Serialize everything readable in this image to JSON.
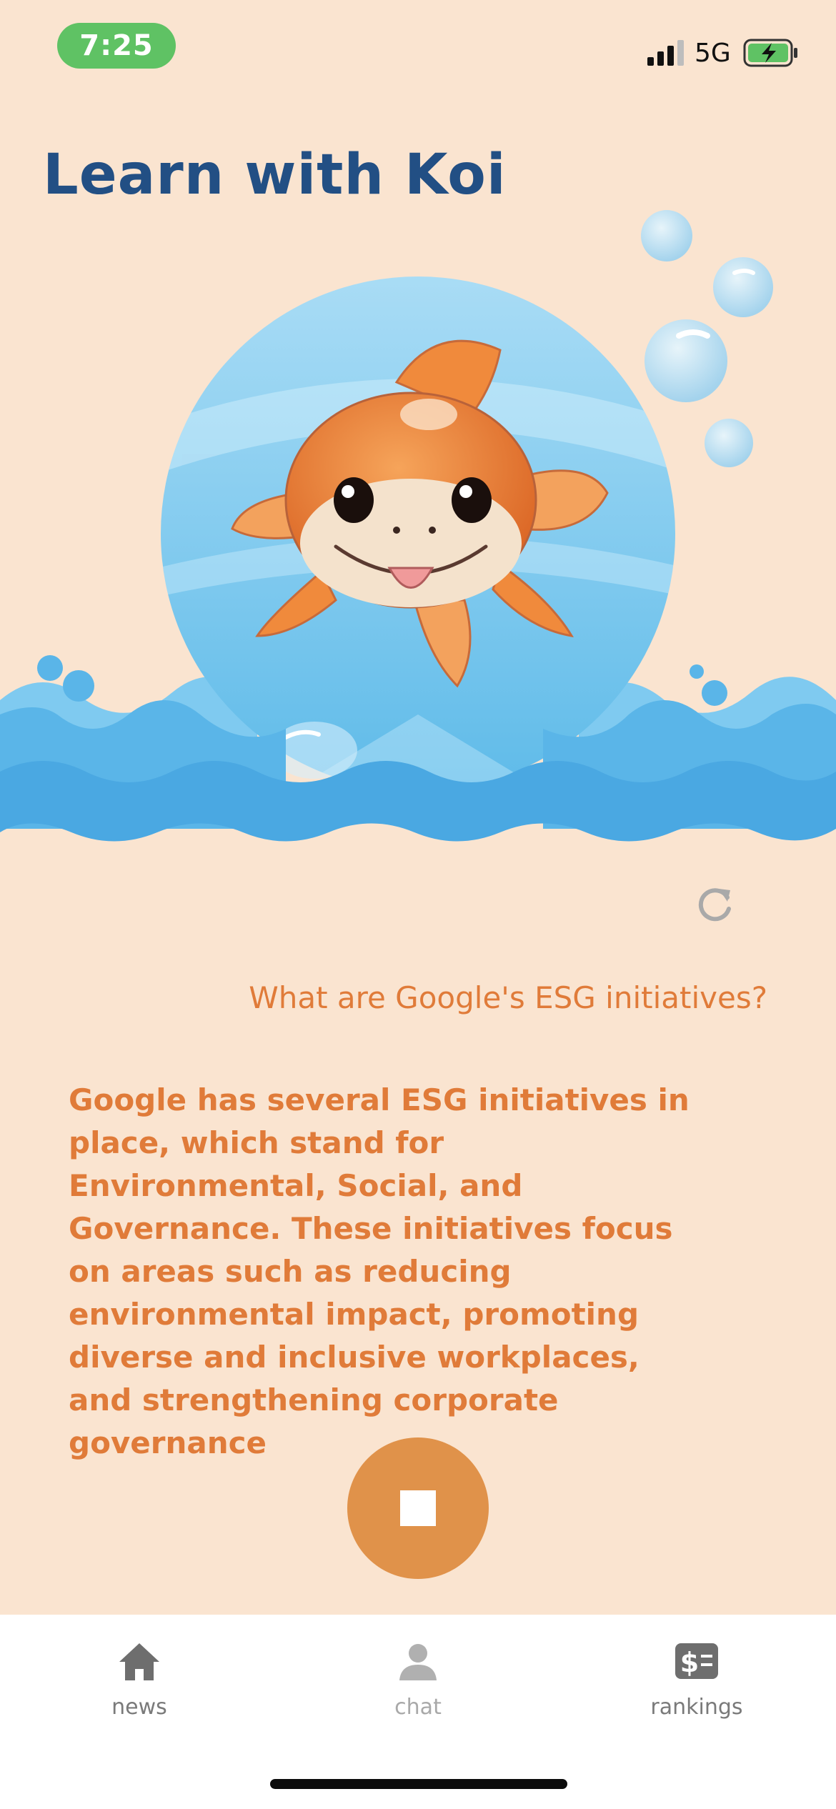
{
  "status_bar": {
    "time": "7:25",
    "network": "5G",
    "signal_icon": "cellular-signal-icon",
    "battery_icon": "battery-charging-icon",
    "colors": {
      "time_pill": "#5fc264",
      "battery": "#5fc264"
    }
  },
  "header": {
    "title": "Learn with Koi"
  },
  "hero": {
    "image": "koi-fish-mascot-illustration"
  },
  "chat": {
    "refresh_icon": "refresh-icon",
    "question": "What are Google's ESG initiatives?",
    "answer": "Google has several ESG initiatives in place, which stand for Environmental, Social, and Governance. These initiatives focus on areas such as reducing environmental impact, promoting diverse and inclusive workplaces, and strengthening corporate governance"
  },
  "controls": {
    "stop_icon": "stop-icon"
  },
  "tabbar": {
    "items": [
      {
        "label": "news",
        "icon": "home-icon"
      },
      {
        "label": "chat",
        "icon": "person-icon"
      },
      {
        "label": "rankings",
        "icon": "money-icon"
      }
    ]
  },
  "colors": {
    "background": "#fae4d0",
    "title": "#224f84",
    "accent": "#e07b39",
    "stop_button": "#e0924a"
  }
}
